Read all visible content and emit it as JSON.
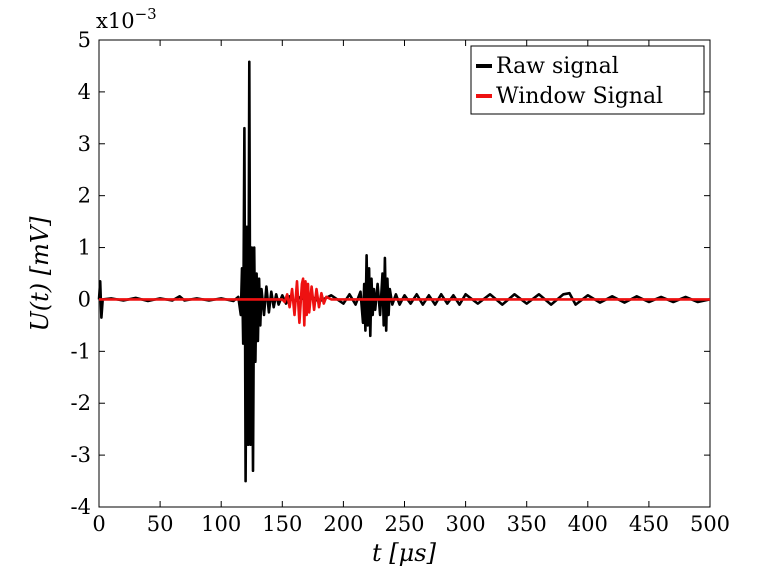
{
  "chart_data": {
    "type": "line",
    "xlabel": "t [μs]",
    "ylabel": "U(t) [mV]",
    "multiplier": "x10",
    "multiplier_exp": "−3",
    "xlim": [
      0,
      500
    ],
    "ylim": [
      -4,
      5
    ],
    "xticks": [
      "0",
      "50",
      "100",
      "150",
      "200",
      "250",
      "300",
      "350",
      "400",
      "450",
      "500"
    ],
    "yticks": [
      "-4",
      "-3",
      "-2",
      "-1",
      "0",
      "1",
      "2",
      "3",
      "4",
      "5"
    ],
    "grid": false,
    "legend_position": "top-right",
    "series": [
      {
        "name": "Raw signal",
        "color": "#000000",
        "x": [
          0,
          1,
          2,
          3,
          10,
          20,
          30,
          40,
          50,
          60,
          66,
          70,
          80,
          90,
          100,
          110,
          114,
          116,
          117,
          118,
          119,
          120,
          121,
          122,
          123,
          124,
          125,
          126,
          127,
          128,
          129,
          130,
          131,
          132,
          133,
          135,
          137,
          139,
          141,
          143,
          145,
          147,
          150,
          153,
          156,
          160,
          165,
          170,
          175,
          180,
          190,
          200,
          205,
          210,
          214,
          216,
          217,
          218,
          219,
          220,
          221,
          222,
          223,
          224,
          225,
          226,
          228,
          230,
          232,
          233,
          234,
          235,
          236,
          237,
          238,
          240,
          243,
          246,
          250,
          255,
          260,
          265,
          270,
          275,
          280,
          285,
          290,
          295,
          300,
          310,
          320,
          330,
          340,
          350,
          360,
          370,
          380,
          385,
          390,
          400,
          410,
          420,
          430,
          440,
          450,
          460,
          470,
          480,
          490,
          500
        ],
        "values": [
          0.0,
          0.35,
          -0.35,
          0.0,
          0.02,
          -0.02,
          0.03,
          -0.03,
          0.02,
          -0.02,
          0.06,
          -0.02,
          0.02,
          -0.02,
          0.02,
          -0.03,
          0.05,
          -0.3,
          0.6,
          -0.85,
          3.3,
          -3.5,
          1.4,
          -2.8,
          4.58,
          -2.8,
          1.0,
          -3.3,
          1.0,
          -1.2,
          0.5,
          -0.8,
          0.4,
          -0.5,
          0.2,
          -0.3,
          0.25,
          -0.25,
          0.15,
          -0.15,
          0.1,
          -0.1,
          0.08,
          -0.08,
          0.06,
          -0.05,
          0.05,
          -0.05,
          0.04,
          -0.04,
          0.08,
          -0.08,
          0.1,
          -0.1,
          0.15,
          -0.45,
          0.3,
          -0.6,
          0.85,
          -0.5,
          0.6,
          -0.7,
          0.4,
          -0.3,
          0.2,
          -0.2,
          0.3,
          -0.3,
          0.5,
          -0.5,
          0.8,
          -0.6,
          0.4,
          -0.3,
          0.2,
          -0.1,
          0.1,
          -0.1,
          0.08,
          -0.08,
          0.1,
          -0.1,
          0.08,
          -0.1,
          0.1,
          -0.08,
          0.08,
          -0.1,
          0.1,
          -0.08,
          0.1,
          -0.1,
          0.1,
          -0.08,
          0.1,
          -0.1,
          0.1,
          0.12,
          -0.1,
          0.08,
          -0.06,
          0.06,
          -0.06,
          0.06,
          -0.05,
          0.05,
          -0.05,
          0.05,
          -0.05,
          0.0
        ]
      },
      {
        "name": "Window Signal",
        "color": "#ee1111",
        "x": [
          0,
          50,
          100,
          150,
          152,
          154,
          156,
          158,
          160,
          162,
          164,
          166,
          167,
          168,
          169,
          170,
          171,
          172,
          174,
          176,
          178,
          180,
          182,
          184,
          186,
          190,
          200,
          250,
          300,
          350,
          400,
          450,
          500
        ],
        "values": [
          0.0,
          0.0,
          0.0,
          0.0,
          -0.05,
          0.1,
          -0.15,
          0.2,
          -0.3,
          0.35,
          -0.45,
          0.3,
          0.4,
          -0.5,
          0.35,
          -0.3,
          0.3,
          -0.25,
          0.25,
          -0.2,
          0.2,
          -0.15,
          0.12,
          -0.08,
          0.05,
          0.0,
          0.0,
          0.0,
          0.0,
          0.0,
          0.0,
          0.0,
          0.0
        ]
      }
    ]
  }
}
